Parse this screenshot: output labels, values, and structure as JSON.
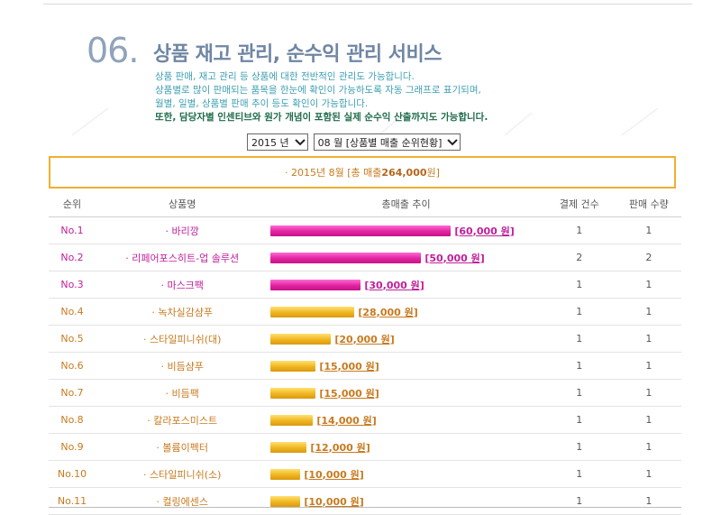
{
  "section": {
    "number": "06.",
    "title": "상품 재고 관리, 순수익 관리 서비스",
    "desc": [
      "상품 판매, 재고 관리 등 상품에 대한 전반적인 관리도 가능합니다.",
      "상품별로 많이 판매되는 품목을 한눈에 확인이 가능하도록 자동 그래프로 표기되며,",
      "월별, 일별, 상품별 판매 추이 등도 확인이 가능합니다."
    ],
    "desc_strong": "또한, 담당자별 인센티브와 원가 개념이 포함된 실제 순수익 산출까지도 가능합니다."
  },
  "filters": {
    "year": "2015 년",
    "month": "08 월 [상품별 매출 순위현황]"
  },
  "summary": {
    "prefix": "· 2015년 8월 [총 매출 ",
    "total": "264,000",
    "suffix": " 원]"
  },
  "table": {
    "headers": {
      "rank": "순위",
      "name": "상품명",
      "trend": "총매출 추이",
      "payments": "결제 건수",
      "qty": "판매 수량"
    },
    "rows": [
      {
        "rank": "No.1",
        "name": "· 바리깡",
        "amount": "[60,000 원]",
        "payments": "1",
        "qty": "1",
        "value": 60000
      },
      {
        "rank": "No.2",
        "name": "· 리페어포스히트-업 솔루션",
        "amount": "[50,000 원]",
        "payments": "2",
        "qty": "2",
        "value": 50000
      },
      {
        "rank": "No.3",
        "name": "· 마스크팩",
        "amount": "[30,000 원]",
        "payments": "1",
        "qty": "1",
        "value": 30000
      },
      {
        "rank": "No.4",
        "name": "· 녹차실감샴푸",
        "amount": "[28,000 원]",
        "payments": "1",
        "qty": "1",
        "value": 28000
      },
      {
        "rank": "No.5",
        "name": "· 스타일피니쉬(대)",
        "amount": "[20,000 원]",
        "payments": "1",
        "qty": "1",
        "value": 20000
      },
      {
        "rank": "No.6",
        "name": "· 비듬샴푸",
        "amount": "[15,000 원]",
        "payments": "1",
        "qty": "1",
        "value": 15000
      },
      {
        "rank": "No.7",
        "name": "· 비듬팩",
        "amount": "[15,000 원]",
        "payments": "1",
        "qty": "1",
        "value": 15000
      },
      {
        "rank": "No.8",
        "name": "· 칼라포스미스트",
        "amount": "[14,000 원]",
        "payments": "1",
        "qty": "1",
        "value": 14000
      },
      {
        "rank": "No.9",
        "name": "· 볼륨이펙터",
        "amount": "[12,000 원]",
        "payments": "1",
        "qty": "1",
        "value": 12000
      },
      {
        "rank": "No.10",
        "name": "· 스타일피니쉬(소)",
        "amount": "[10,000 원]",
        "payments": "1",
        "qty": "1",
        "value": 10000
      },
      {
        "rank": "No.11",
        "name": "· 컬링에센스",
        "amount": "[10,000 원]",
        "payments": "1",
        "qty": "1",
        "value": 10000
      }
    ]
  },
  "colors": {
    "top3": "#c0209a",
    "rest": "#c87a1e",
    "summary_border": "#f0b030"
  }
}
